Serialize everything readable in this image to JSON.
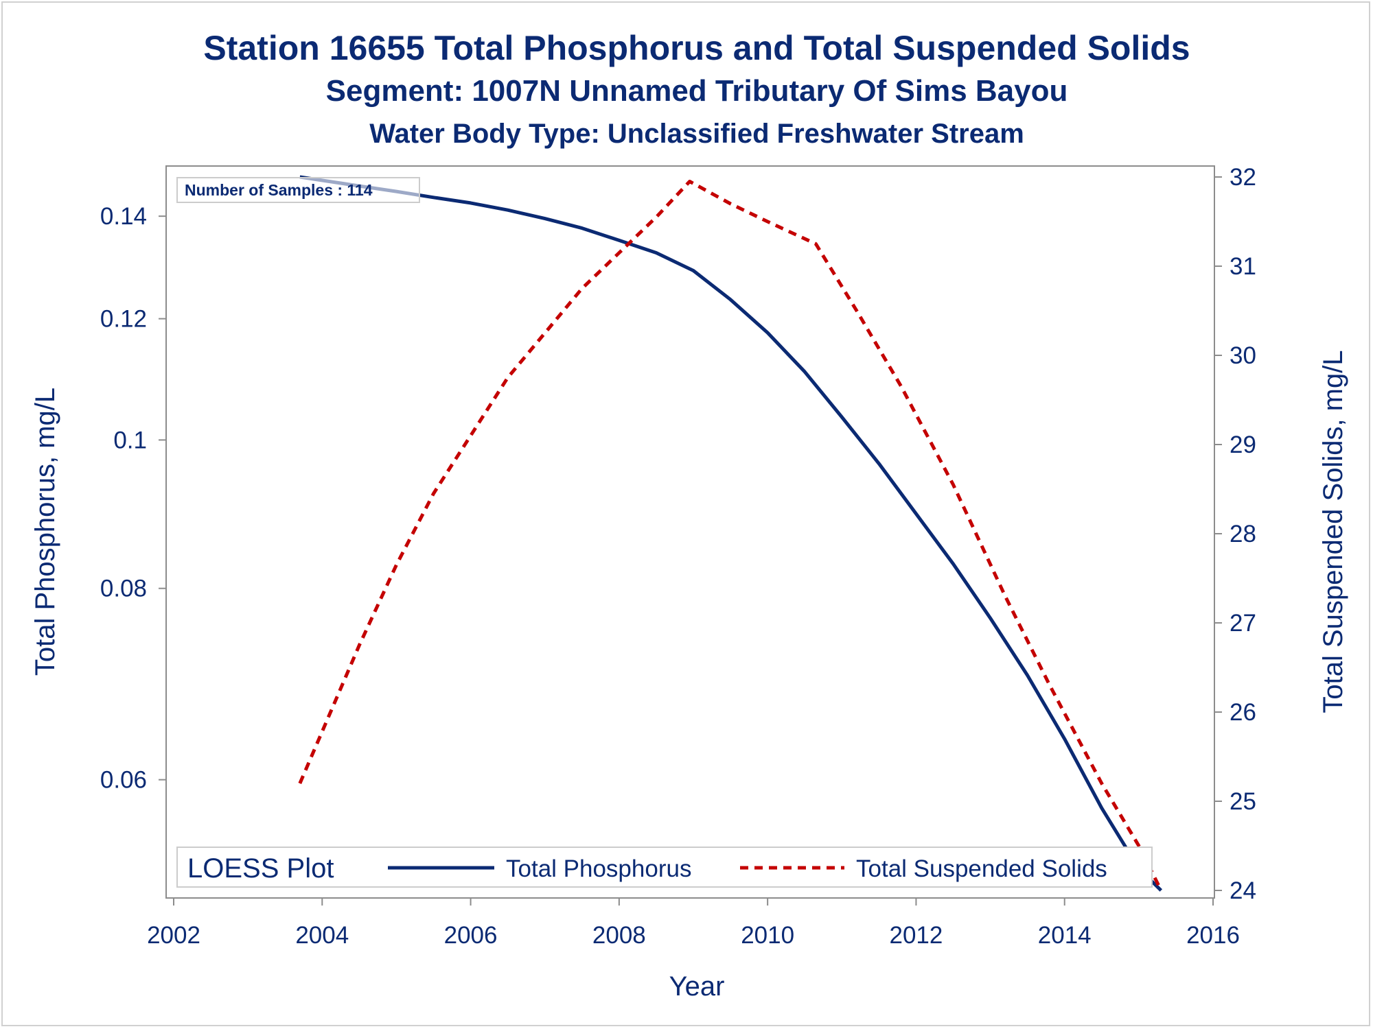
{
  "title": "Station 16655  Total Phosphorus and Total Suspended Solids",
  "subtitle": "Segment: 1007N  Unnamed Tributary Of Sims Bayou",
  "subtitle2": "Water Body Type: Unclassified Freshwater Stream",
  "annotation": "Number of Samples : 114",
  "legend": {
    "title": "LOESS Plot",
    "items": [
      "Total Phosphorus",
      "Total Suspended Solids"
    ]
  },
  "colors": {
    "text": "#0b2a73",
    "phosphorus": "#0b2a73",
    "solids": "#c40000",
    "axis": "#8c8c8c"
  },
  "chart_data": {
    "type": "line",
    "title": "Station 16655  Total Phosphorus and Total Suspended Solids",
    "xlabel": "Year",
    "ylabel": "Total Phosphorus, mg/L",
    "y2label": "Total Suspended Solids, mg/L",
    "xlim": [
      2002,
      2016
    ],
    "xticks": [
      2002,
      2004,
      2006,
      2008,
      2010,
      2012,
      2014,
      2016
    ],
    "y_scale": "log",
    "ylim": [
      0.0508,
      0.1485
    ],
    "yticks": [
      0.06,
      0.08,
      0.1,
      0.12,
      0.14
    ],
    "ytick_labels": [
      "0.06",
      "0.08",
      "0.1",
      "0.12",
      "0.14"
    ],
    "y2lim": [
      24,
      32
    ],
    "y2ticks": [
      24,
      25,
      26,
      27,
      28,
      29,
      30,
      31,
      32
    ],
    "grid": false,
    "legend_position": "bottom-inside",
    "series": [
      {
        "name": "Total Phosphorus",
        "axis": "left",
        "style": "solid",
        "color": "#0b2a73",
        "x": [
          2003.7,
          2004.5,
          2005.0,
          2005.5,
          2006.0,
          2006.5,
          2007.0,
          2007.5,
          2008.0,
          2008.5,
          2009.0,
          2009.5,
          2010.0,
          2010.5,
          2011.0,
          2011.5,
          2012.0,
          2012.5,
          2013.0,
          2013.5,
          2014.0,
          2014.5,
          2015.0,
          2015.3
        ],
        "values": [
          0.1485,
          0.1465,
          0.1453,
          0.144,
          0.1428,
          0.1413,
          0.1395,
          0.1375,
          0.135,
          0.1325,
          0.129,
          0.1235,
          0.1175,
          0.1108,
          0.1035,
          0.0965,
          0.0895,
          0.083,
          0.0765,
          0.0702,
          0.0638,
          0.0575,
          0.0525,
          0.0508
        ]
      },
      {
        "name": "Total Suspended Solids",
        "axis": "right",
        "style": "dashed",
        "color": "#c40000",
        "x": [
          2003.7,
          2004.5,
          2005.0,
          2005.5,
          2006.0,
          2006.5,
          2007.0,
          2007.5,
          2008.0,
          2008.5,
          2008.95,
          2009.5,
          2010.0,
          2010.65,
          2011.2,
          2011.8,
          2012.5,
          2013.2,
          2013.8,
          2014.5,
          2015.0,
          2015.3
        ],
        "values": [
          25.2,
          26.75,
          27.65,
          28.45,
          29.1,
          29.75,
          30.25,
          30.75,
          31.15,
          31.55,
          31.95,
          31.7,
          31.5,
          31.25,
          30.5,
          29.65,
          28.55,
          27.3,
          26.3,
          25.2,
          24.5,
          24.0
        ]
      }
    ]
  }
}
